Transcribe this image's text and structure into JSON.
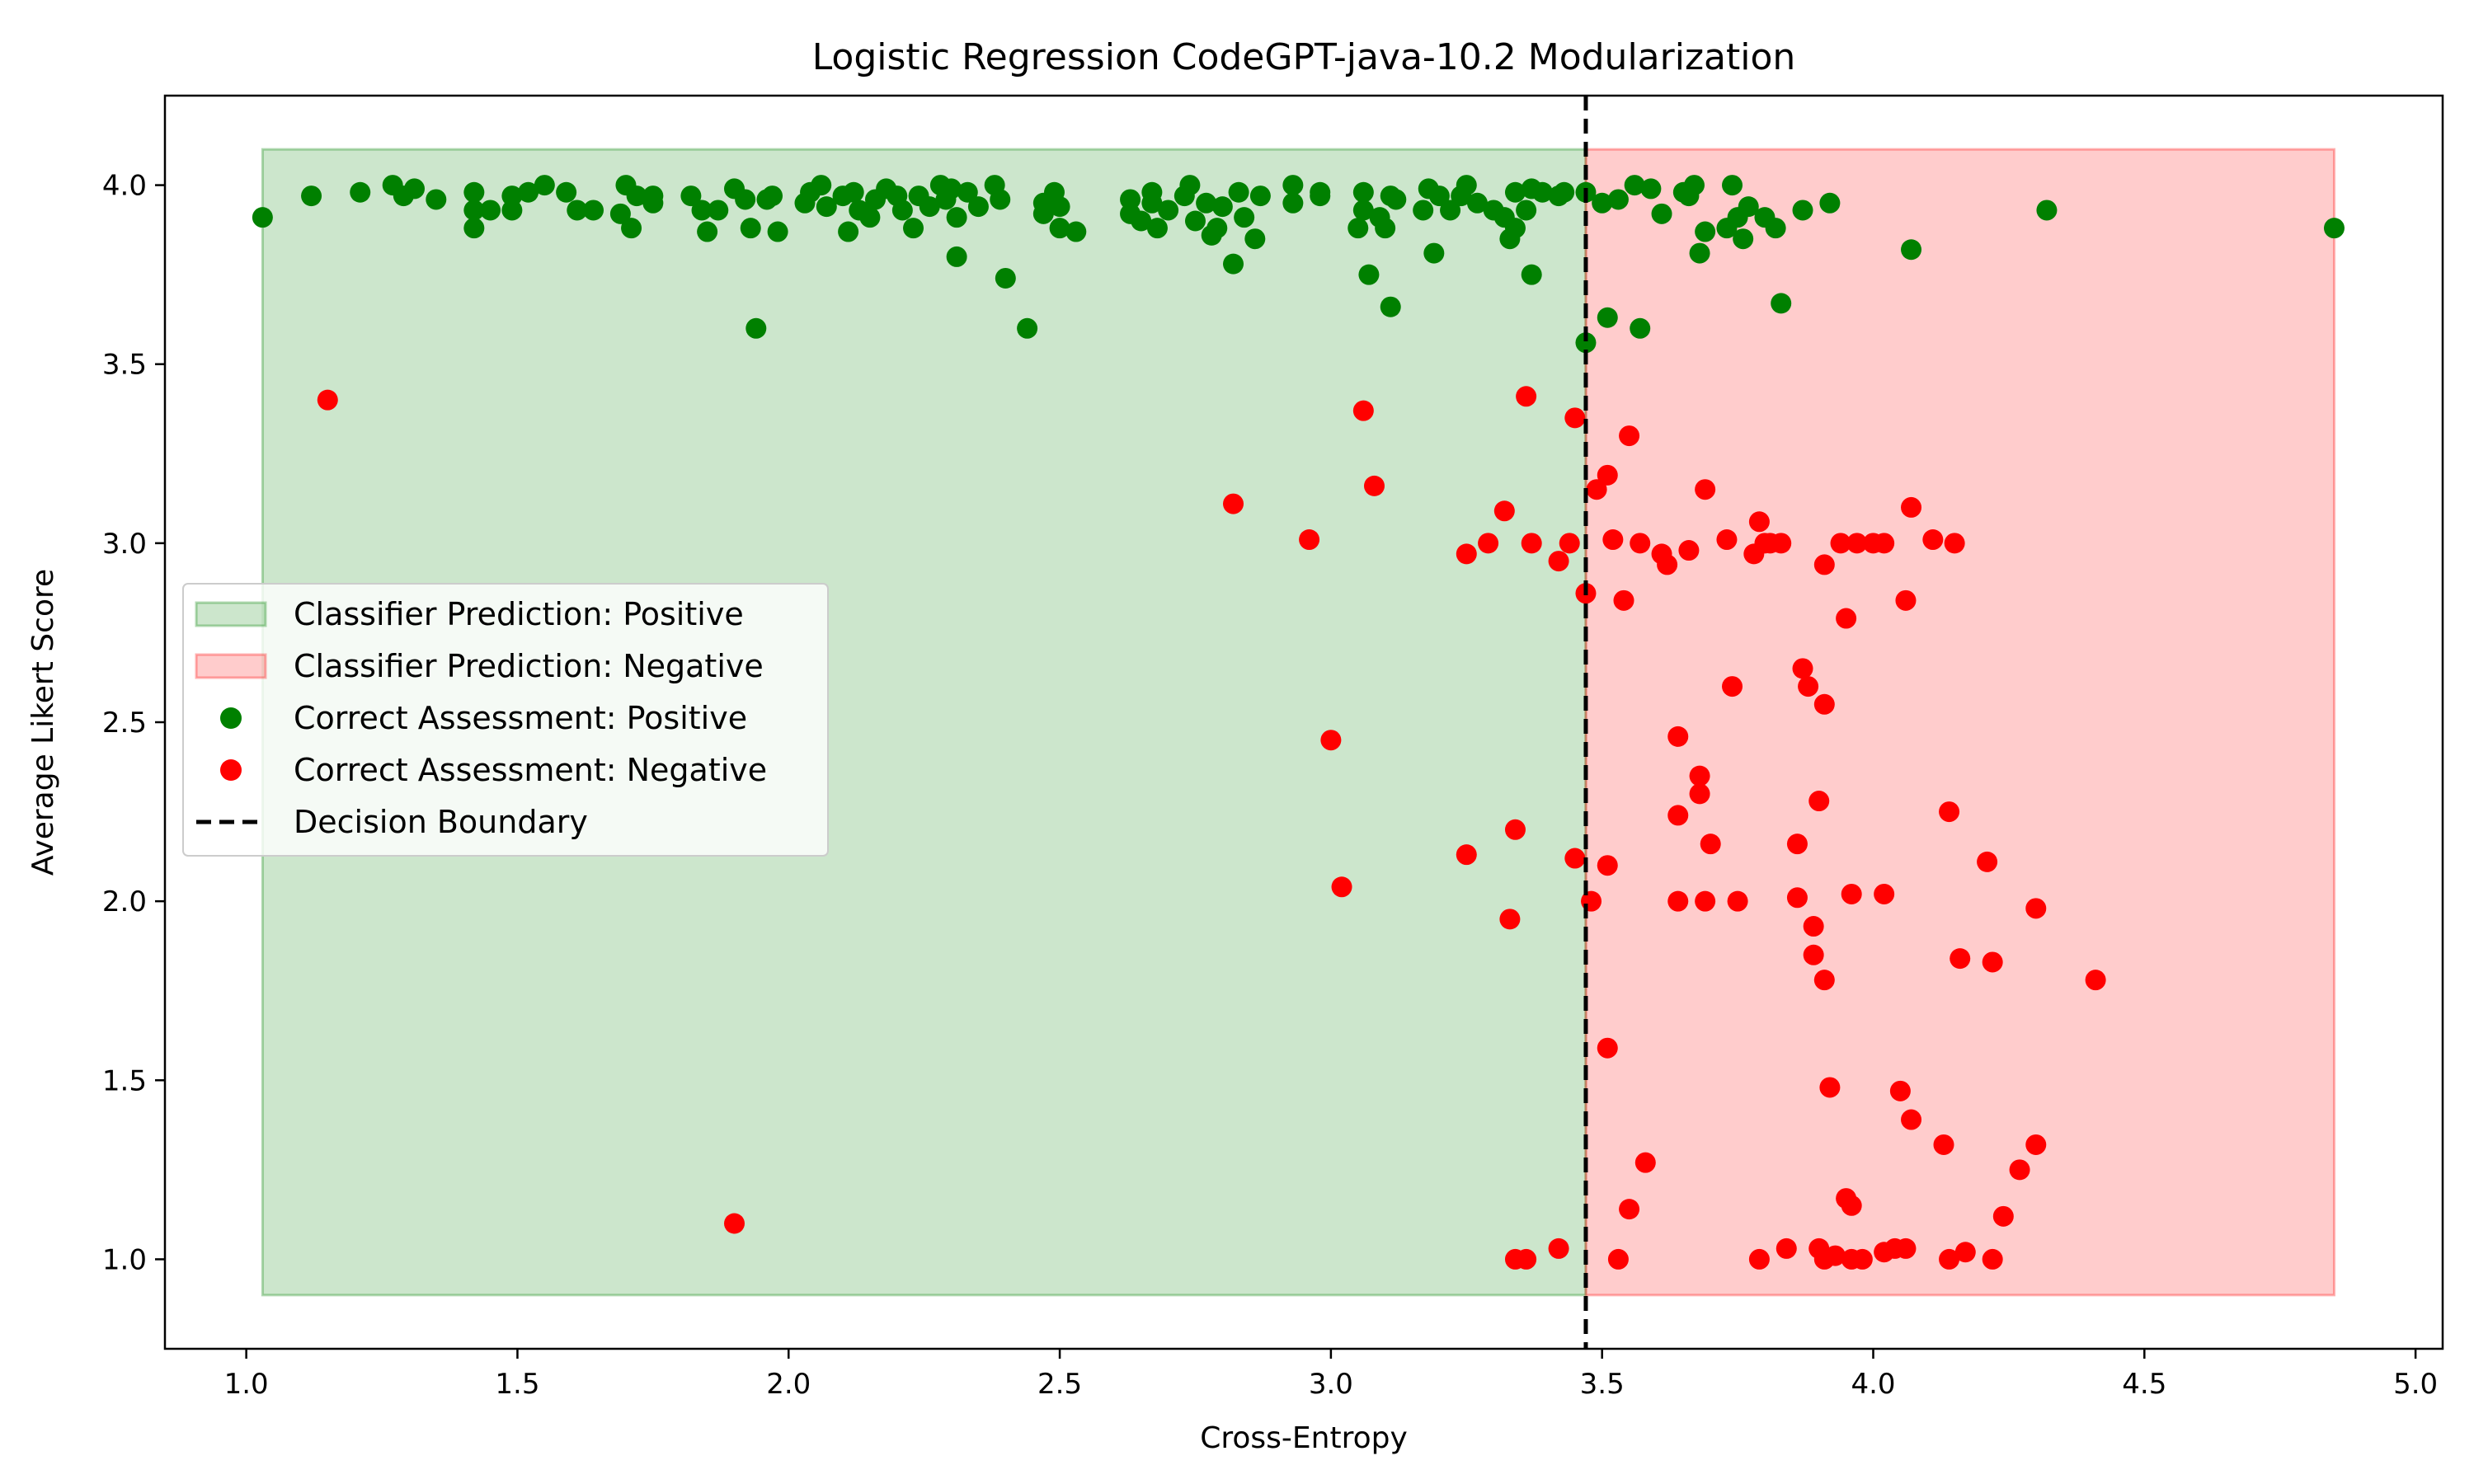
{
  "chart_data": {
    "type": "scatter",
    "title": "Logistic Regression CodeGPT-java-10.2 Modularization",
    "xlabel": "Cross-Entropy",
    "ylabel": "Average Likert Score",
    "xlim": [
      0.85,
      5.05
    ],
    "ylim": [
      0.75,
      4.25
    ],
    "xticks": [
      "1.0",
      "1.5",
      "2.0",
      "2.5",
      "3.0",
      "3.5",
      "4.0",
      "4.5",
      "5.0"
    ],
    "yticks": [
      "1.0",
      "1.5",
      "2.0",
      "2.5",
      "3.0",
      "3.5",
      "4.0"
    ],
    "grid": false,
    "legend_position": "center-left",
    "decision_boundary": 3.47,
    "regions": [
      {
        "name": "Classifier Prediction: Positive",
        "x_range": [
          1.03,
          3.47
        ],
        "y_range": [
          0.9,
          4.1
        ],
        "color": "#008000",
        "opacity": 0.2
      },
      {
        "name": "Classifier Prediction: Negative",
        "x_range": [
          3.47,
          4.85
        ],
        "y_range": [
          0.9,
          4.1
        ],
        "color": "#ff0000",
        "opacity": 0.2
      }
    ],
    "series": [
      {
        "name": "Correct Assessment: Positive",
        "color": "#008000",
        "points": [
          [
            1.03,
            3.91
          ],
          [
            1.12,
            3.97
          ],
          [
            1.21,
            3.98
          ],
          [
            1.27,
            4.0
          ],
          [
            1.29,
            3.97
          ],
          [
            1.31,
            3.99
          ],
          [
            1.35,
            3.96
          ],
          [
            1.42,
            3.98
          ],
          [
            1.42,
            3.93
          ],
          [
            1.42,
            3.88
          ],
          [
            1.45,
            3.93
          ],
          [
            1.49,
            3.93
          ],
          [
            1.49,
            3.97
          ],
          [
            1.52,
            3.98
          ],
          [
            1.55,
            4.0
          ],
          [
            1.59,
            3.98
          ],
          [
            1.61,
            3.93
          ],
          [
            1.64,
            3.93
          ],
          [
            1.69,
            3.92
          ],
          [
            1.7,
            4.0
          ],
          [
            1.71,
            3.88
          ],
          [
            1.72,
            3.97
          ],
          [
            1.75,
            3.95
          ],
          [
            1.75,
            3.97
          ],
          [
            1.82,
            3.97
          ],
          [
            1.84,
            3.93
          ],
          [
            1.85,
            3.87
          ],
          [
            1.87,
            3.93
          ],
          [
            1.9,
            3.99
          ],
          [
            1.92,
            3.96
          ],
          [
            1.93,
            3.88
          ],
          [
            1.94,
            3.6
          ],
          [
            1.96,
            3.96
          ],
          [
            1.98,
            3.87
          ],
          [
            1.97,
            3.97
          ],
          [
            2.03,
            3.95
          ],
          [
            2.04,
            3.98
          ],
          [
            2.06,
            4.0
          ],
          [
            2.07,
            3.94
          ],
          [
            2.1,
            3.97
          ],
          [
            2.11,
            3.87
          ],
          [
            2.12,
            3.98
          ],
          [
            2.13,
            3.93
          ],
          [
            2.15,
            3.91
          ],
          [
            2.16,
            3.96
          ],
          [
            2.18,
            3.99
          ],
          [
            2.2,
            3.97
          ],
          [
            2.21,
            3.93
          ],
          [
            2.23,
            3.88
          ],
          [
            2.24,
            3.97
          ],
          [
            2.26,
            3.94
          ],
          [
            2.28,
            4.0
          ],
          [
            2.29,
            3.96
          ],
          [
            2.3,
            3.99
          ],
          [
            2.31,
            3.91
          ],
          [
            2.31,
            3.8
          ],
          [
            2.33,
            3.98
          ],
          [
            2.35,
            3.94
          ],
          [
            2.38,
            4.0
          ],
          [
            2.39,
            3.96
          ],
          [
            2.4,
            3.74
          ],
          [
            2.44,
            3.6
          ],
          [
            2.47,
            3.95
          ],
          [
            2.47,
            3.92
          ],
          [
            2.49,
            3.98
          ],
          [
            2.5,
            3.94
          ],
          [
            2.5,
            3.88
          ],
          [
            2.53,
            3.87
          ],
          [
            2.63,
            3.96
          ],
          [
            2.63,
            3.92
          ],
          [
            2.65,
            3.9
          ],
          [
            2.67,
            3.95
          ],
          [
            2.67,
            3.98
          ],
          [
            2.68,
            3.88
          ],
          [
            2.7,
            3.93
          ],
          [
            2.73,
            3.97
          ],
          [
            2.74,
            4.0
          ],
          [
            2.75,
            3.9
          ],
          [
            2.77,
            3.95
          ],
          [
            2.78,
            3.86
          ],
          [
            2.79,
            3.88
          ],
          [
            2.8,
            3.94
          ],
          [
            2.82,
            3.78
          ],
          [
            2.83,
            3.98
          ],
          [
            2.84,
            3.91
          ],
          [
            2.86,
            3.85
          ],
          [
            2.87,
            3.97
          ],
          [
            2.93,
            4.0
          ],
          [
            2.93,
            3.95
          ],
          [
            2.98,
            3.97
          ],
          [
            2.98,
            3.98
          ],
          [
            3.05,
            3.88
          ],
          [
            3.06,
            3.93
          ],
          [
            3.06,
            3.98
          ],
          [
            3.07,
            3.75
          ],
          [
            3.09,
            3.91
          ],
          [
            3.1,
            3.88
          ],
          [
            3.11,
            3.66
          ],
          [
            3.11,
            3.97
          ],
          [
            3.12,
            3.96
          ],
          [
            3.17,
            3.93
          ],
          [
            3.18,
            3.99
          ],
          [
            3.19,
            3.81
          ],
          [
            3.2,
            3.97
          ],
          [
            3.22,
            3.93
          ],
          [
            3.24,
            3.97
          ],
          [
            3.25,
            4.0
          ],
          [
            3.27,
            3.95
          ],
          [
            3.3,
            3.93
          ],
          [
            3.32,
            3.91
          ],
          [
            3.33,
            3.85
          ],
          [
            3.34,
            3.88
          ],
          [
            3.34,
            3.98
          ],
          [
            3.36,
            3.93
          ],
          [
            3.37,
            3.75
          ],
          [
            3.37,
            3.99
          ],
          [
            3.39,
            3.98
          ],
          [
            3.42,
            3.97
          ],
          [
            3.43,
            3.98
          ],
          [
            3.47,
            3.98
          ],
          [
            3.47,
            3.56
          ],
          [
            3.5,
            3.95
          ],
          [
            3.51,
            3.63
          ],
          [
            3.53,
            3.96
          ],
          [
            3.56,
            4.0
          ],
          [
            3.57,
            3.6
          ],
          [
            3.59,
            3.99
          ],
          [
            3.61,
            3.92
          ],
          [
            3.65,
            3.98
          ],
          [
            3.66,
            3.97
          ],
          [
            3.67,
            4.0
          ],
          [
            3.68,
            3.81
          ],
          [
            3.69,
            3.87
          ],
          [
            3.73,
            3.88
          ],
          [
            3.74,
            4.0
          ],
          [
            3.75,
            3.91
          ],
          [
            3.76,
            3.85
          ],
          [
            3.77,
            3.94
          ],
          [
            3.8,
            3.91
          ],
          [
            3.82,
            3.88
          ],
          [
            3.83,
            3.67
          ],
          [
            3.87,
            3.93
          ],
          [
            3.92,
            3.95
          ],
          [
            4.07,
            3.82
          ],
          [
            4.32,
            3.93
          ],
          [
            4.85,
            3.88
          ]
        ]
      },
      {
        "name": "Correct Assessment: Negative",
        "color": "#ff0000",
        "points": [
          [
            1.15,
            3.4
          ],
          [
            1.9,
            1.1
          ],
          [
            2.82,
            3.11
          ],
          [
            2.96,
            3.01
          ],
          [
            3.0,
            2.45
          ],
          [
            3.02,
            2.04
          ],
          [
            3.06,
            3.37
          ],
          [
            3.08,
            3.16
          ],
          [
            3.25,
            2.97
          ],
          [
            3.25,
            2.13
          ],
          [
            3.29,
            3.0
          ],
          [
            3.32,
            3.09
          ],
          [
            3.33,
            1.95
          ],
          [
            3.34,
            1.0
          ],
          [
            3.34,
            2.2
          ],
          [
            3.36,
            3.41
          ],
          [
            3.37,
            3.0
          ],
          [
            3.36,
            1.0
          ],
          [
            3.42,
            2.95
          ],
          [
            3.42,
            1.03
          ],
          [
            3.44,
            3.0
          ],
          [
            3.45,
            2.12
          ],
          [
            3.45,
            3.35
          ],
          [
            3.47,
            2.86
          ],
          [
            3.48,
            2.0
          ],
          [
            3.49,
            3.15
          ],
          [
            3.51,
            3.19
          ],
          [
            3.51,
            2.1
          ],
          [
            3.51,
            1.59
          ],
          [
            3.52,
            3.01
          ],
          [
            3.53,
            1.0
          ],
          [
            3.54,
            2.84
          ],
          [
            3.55,
            3.3
          ],
          [
            3.55,
            1.14
          ],
          [
            3.57,
            3.0
          ],
          [
            3.58,
            1.27
          ],
          [
            3.61,
            2.97
          ],
          [
            3.62,
            2.94
          ],
          [
            3.64,
            2.46
          ],
          [
            3.64,
            2.24
          ],
          [
            3.64,
            2.0
          ],
          [
            3.66,
            2.98
          ],
          [
            3.68,
            2.35
          ],
          [
            3.68,
            2.3
          ],
          [
            3.69,
            3.15
          ],
          [
            3.69,
            2.0
          ],
          [
            3.7,
            2.16
          ],
          [
            3.73,
            3.01
          ],
          [
            3.74,
            2.6
          ],
          [
            3.75,
            2.0
          ],
          [
            3.78,
            2.97
          ],
          [
            3.79,
            3.06
          ],
          [
            3.79,
            1.0
          ],
          [
            3.8,
            3.0
          ],
          [
            3.81,
            3.0
          ],
          [
            3.83,
            3.0
          ],
          [
            3.84,
            1.03
          ],
          [
            3.86,
            2.16
          ],
          [
            3.86,
            2.01
          ],
          [
            3.87,
            2.65
          ],
          [
            3.88,
            2.6
          ],
          [
            3.89,
            1.93
          ],
          [
            3.89,
            1.85
          ],
          [
            3.9,
            2.28
          ],
          [
            3.91,
            2.55
          ],
          [
            3.91,
            1.78
          ],
          [
            3.91,
            2.94
          ],
          [
            3.9,
            1.03
          ],
          [
            3.91,
            1.0
          ],
          [
            3.92,
            1.48
          ],
          [
            3.93,
            1.01
          ],
          [
            3.94,
            3.0
          ],
          [
            3.95,
            2.79
          ],
          [
            3.95,
            1.17
          ],
          [
            3.96,
            1.15
          ],
          [
            3.96,
            1.0
          ],
          [
            3.97,
            3.0
          ],
          [
            3.96,
            2.02
          ],
          [
            3.98,
            1.0
          ],
          [
            4.0,
            3.0
          ],
          [
            4.02,
            3.0
          ],
          [
            4.02,
            2.02
          ],
          [
            4.02,
            1.02
          ],
          [
            4.04,
            1.03
          ],
          [
            4.05,
            1.47
          ],
          [
            4.06,
            2.84
          ],
          [
            4.06,
            1.03
          ],
          [
            4.07,
            3.1
          ],
          [
            4.07,
            1.39
          ],
          [
            4.11,
            3.01
          ],
          [
            4.13,
            1.32
          ],
          [
            4.14,
            2.25
          ],
          [
            4.14,
            1.0
          ],
          [
            4.15,
            3.0
          ],
          [
            4.16,
            1.84
          ],
          [
            4.17,
            1.02
          ],
          [
            4.21,
            2.11
          ],
          [
            4.22,
            1.83
          ],
          [
            4.22,
            1.0
          ],
          [
            4.24,
            1.12
          ],
          [
            4.27,
            1.25
          ],
          [
            4.3,
            1.98
          ],
          [
            4.3,
            1.32
          ],
          [
            4.41,
            1.78
          ]
        ]
      },
      {
        "name": "Decision Boundary",
        "color": "#000000"
      }
    ]
  }
}
